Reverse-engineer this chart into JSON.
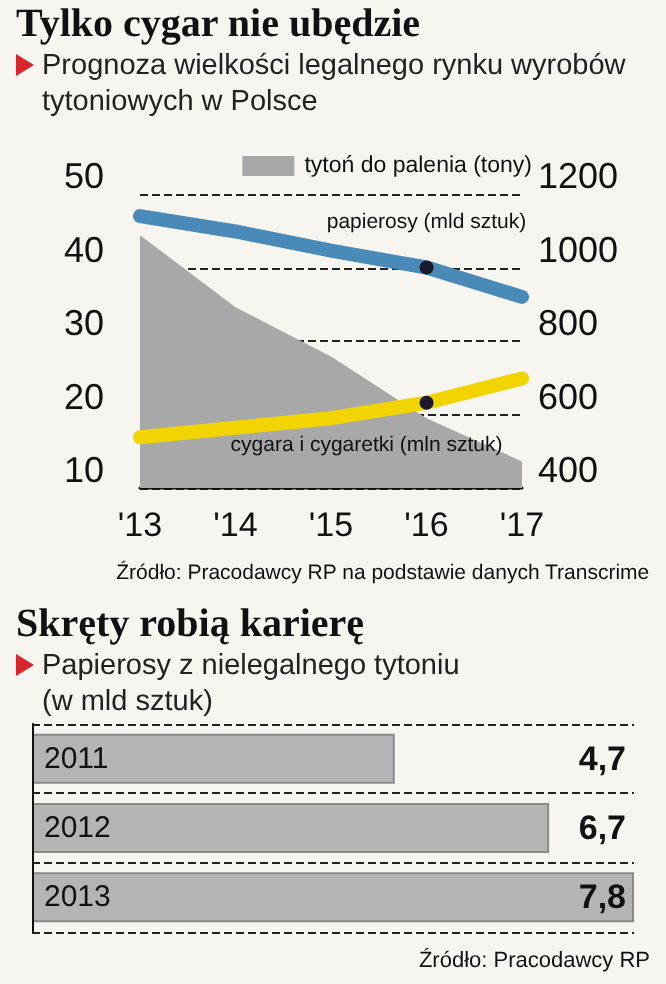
{
  "chart_data": [
    {
      "type": "line",
      "title": "Tylko cygar nie ubędzie",
      "subtitle": "Prognoza wielkości legalnego rynku wyrobów tytoniowych w Polsce",
      "categories": [
        "'13",
        "'14",
        "'15",
        "'16",
        "'17"
      ],
      "series": [
        {
          "type": "area",
          "name": "tytoń do palenia (tony)",
          "color": "#a8a8a8",
          "axis": "y2",
          "values": [
            1088,
            892,
            758,
            590,
            472
          ]
        },
        {
          "color": "#4a8ab8",
          "values": [
            47,
            44.9,
            42.3,
            40,
            36
          ]
        },
        {
          "color": "#f2d500",
          "values": [
            16.9,
            18.2,
            19.5,
            21.6,
            24.9
          ]
        }
      ],
      "ylim": [
        10,
        50
      ],
      "yticks": [
        10,
        20,
        30,
        40,
        50
      ],
      "y2lim": [
        400,
        1200
      ],
      "y2ticks": [
        400,
        600,
        800,
        1000,
        1200
      ],
      "grid": "y",
      "legend": "top right",
      "marker": "none",
      "annotations": [
        {
          "text": "papierosy (mld sztuk)",
          "x": "'16",
          "y": 40
        },
        {
          "text": "cygara i cygaretki (mln sztuk)",
          "x": "'16",
          "y": 21.6
        },
        "Źródło: Pracodawcy RP na podstawie danych Transcrime"
      ]
    },
    {
      "type": "bar",
      "orientation": "horizontal",
      "title": "Skręty robią karierę",
      "subtitle": "Papierosy z nielegalnego tytoniu\n(w mld sztuk)",
      "categories": [
        "2011",
        "2012",
        "2013"
      ],
      "values": [
        4.7,
        6.7,
        7.8
      ],
      "value_labels": [
        "4,7",
        "6,7",
        "7,8"
      ],
      "color": "#b4b4b4",
      "grid": true,
      "annotations": [
        "Źródło: Pracodawcy RP"
      ]
    }
  ]
}
